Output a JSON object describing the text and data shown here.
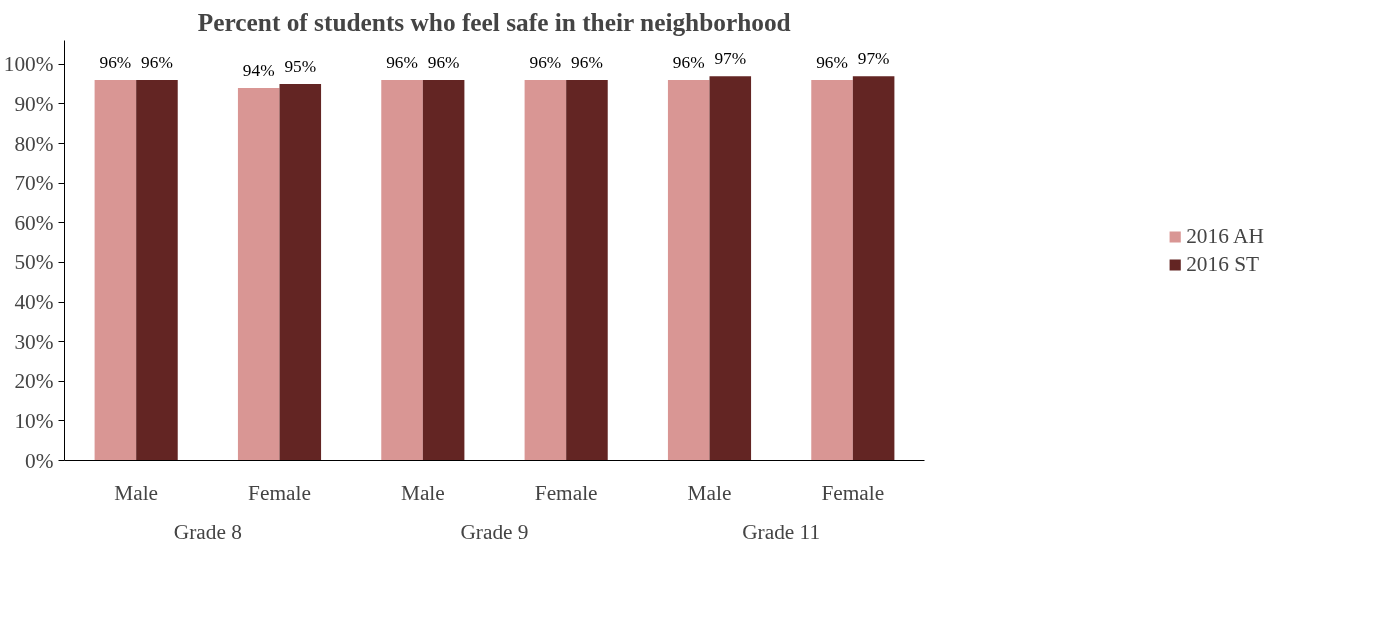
{
  "chart_data": {
    "type": "bar",
    "title": "Percent of students who feel safe in their neighborhood",
    "categories": [
      "Male",
      "Female",
      "Male",
      "Female",
      "Male",
      "Female"
    ],
    "annotations": [
      "Grade 8",
      "Grade 9",
      "Grade 11"
    ],
    "series": [
      {
        "name": "2016 AH",
        "color": "#d99694",
        "values": [
          96,
          94,
          96,
          96,
          96,
          96
        ],
        "value_labels": [
          "96%",
          "94%",
          "96%",
          "96%",
          "96%",
          "96%"
        ]
      },
      {
        "name": "2016 ST",
        "color": "#632523",
        "values": [
          96,
          95,
          96,
          96,
          97,
          97
        ],
        "value_labels": [
          "96%",
          "95%",
          "96%",
          "96%",
          "97%",
          "97%"
        ]
      }
    ],
    "ylim": [
      0,
      106
    ],
    "yticks": [
      {
        "value": 0,
        "label": "0%"
      },
      {
        "value": 10,
        "label": "10%"
      },
      {
        "value": 20,
        "label": "20%"
      },
      {
        "value": 30,
        "label": "30%"
      },
      {
        "value": 40,
        "label": "40%"
      },
      {
        "value": 50,
        "label": "50%"
      },
      {
        "value": 60,
        "label": "60%"
      },
      {
        "value": 70,
        "label": "70%"
      },
      {
        "value": 80,
        "label": "80%"
      },
      {
        "value": 90,
        "label": "90%"
      },
      {
        "value": 100,
        "label": "100%"
      }
    ],
    "grid": false,
    "legend": "right"
  }
}
